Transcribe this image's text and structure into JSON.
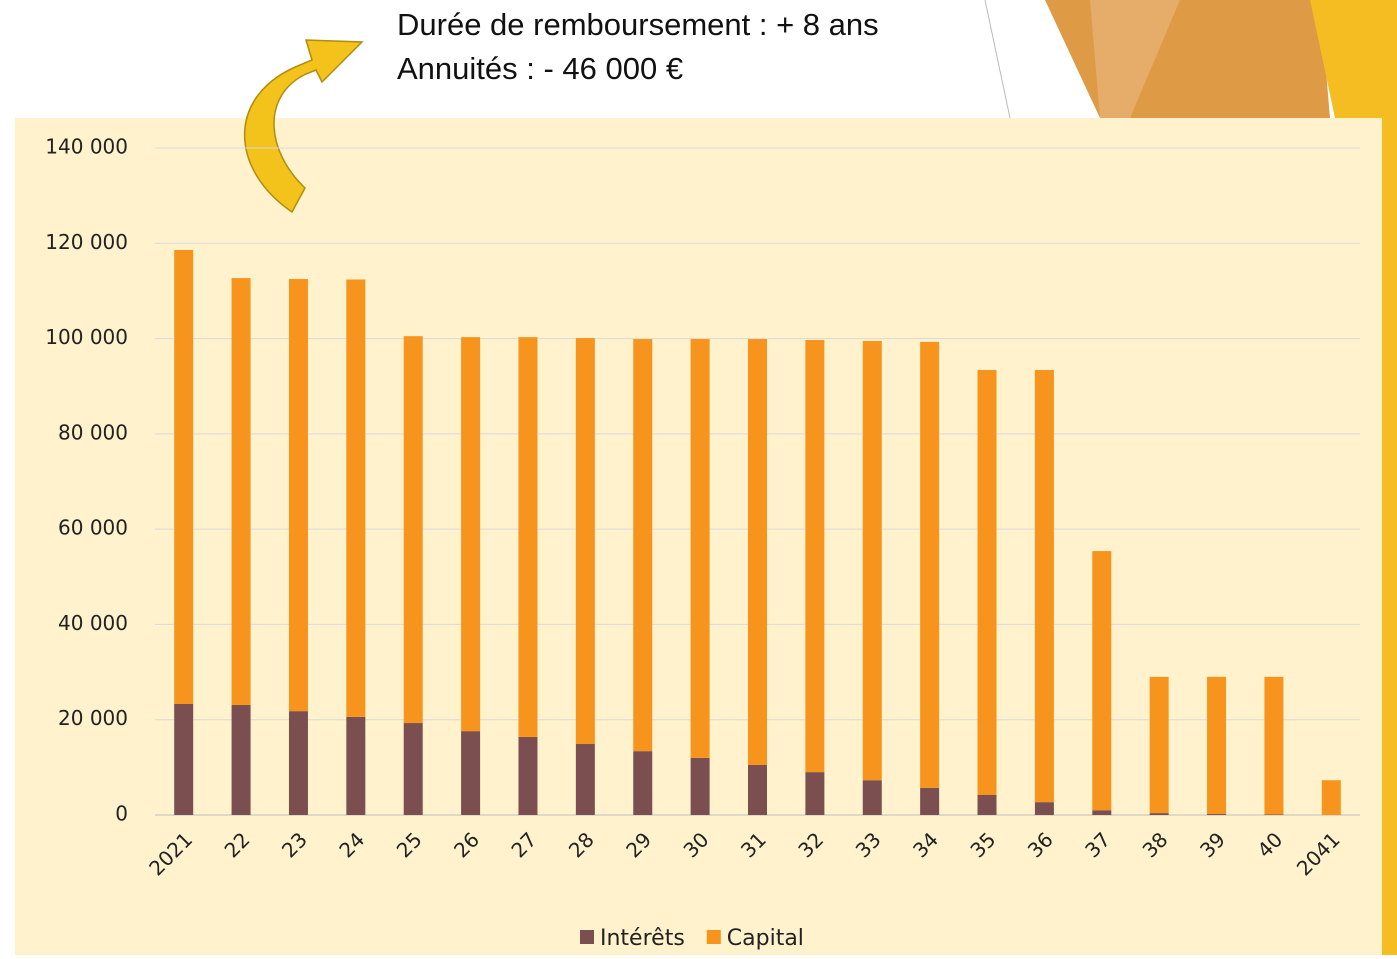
{
  "chart_data": {
    "type": "stacked_bar",
    "annotations": [
      "Durée de remboursement : + 8 ans",
      "Annuités : - 46 000 €"
    ],
    "categories": [
      "2021",
      "22",
      "23",
      "24",
      "25",
      "26",
      "27",
      "28",
      "29",
      "30",
      "31",
      "32",
      "33",
      "34",
      "35",
      "36",
      "37",
      "38",
      "39",
      "40",
      "2041"
    ],
    "series": [
      {
        "name": "Intérêts",
        "color": "#7b4f4f",
        "values": [
          23300,
          23100,
          21800,
          20600,
          19300,
          17600,
          16400,
          14900,
          13400,
          12000,
          10500,
          9000,
          7300,
          5700,
          4200,
          2700,
          1000,
          400,
          200,
          100,
          0
        ]
      },
      {
        "name": "Capital",
        "color": "#f7941d",
        "values": [
          95300,
          89600,
          90700,
          91800,
          81200,
          82700,
          83900,
          85200,
          86500,
          87900,
          89400,
          90700,
          92200,
          93600,
          89200,
          90700,
          54400,
          28600,
          28800,
          28900,
          7300
        ]
      }
    ],
    "ylim": [
      0,
      140000
    ],
    "yticks": [
      0,
      {
        "value": 20000,
        "label": "20 000"
      },
      {
        "value": 40000,
        "label": "40 000"
      },
      {
        "value": 60000,
        "label": "60 000"
      },
      {
        "value": 80000,
        "label": "80 000"
      },
      {
        "value": 100000,
        "label": "100 000"
      },
      {
        "value": 120000,
        "label": "120 000"
      },
      {
        "value": 140000,
        "label": "140 000"
      }
    ],
    "grid": true,
    "legend": "bottom"
  }
}
